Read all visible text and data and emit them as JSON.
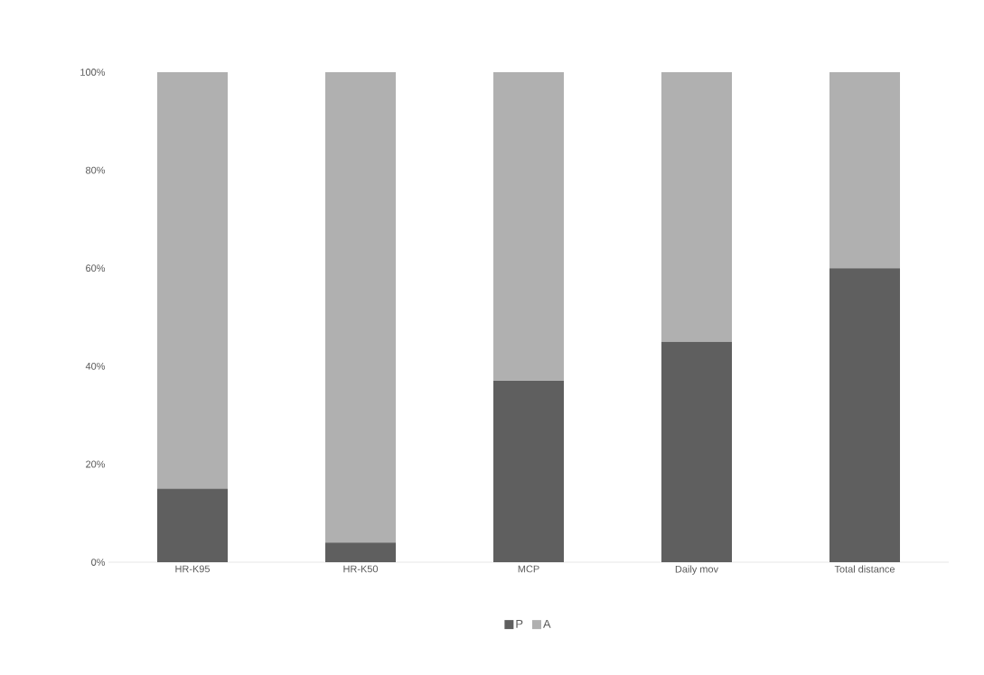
{
  "chart_data": {
    "type": "bar",
    "stacked": true,
    "categories": [
      "HR-K95",
      "HR-K50",
      "MCP",
      "Daily mov",
      "Total distance"
    ],
    "series": [
      {
        "name": "P",
        "color": "#5f5f5f",
        "values": [
          15,
          4,
          37,
          45,
          60
        ]
      },
      {
        "name": "A",
        "color": "#b0b0b0",
        "values": [
          85,
          96,
          63,
          55,
          40
        ]
      }
    ],
    "ylim": [
      0,
      100
    ],
    "yticks": [
      {
        "value": 0,
        "label": "0%"
      },
      {
        "value": 20,
        "label": "20%"
      },
      {
        "value": 40,
        "label": "40%"
      },
      {
        "value": 60,
        "label": "60%"
      },
      {
        "value": 80,
        "label": "80%"
      },
      {
        "value": 100,
        "label": "100%"
      }
    ],
    "legend": "bottom"
  }
}
